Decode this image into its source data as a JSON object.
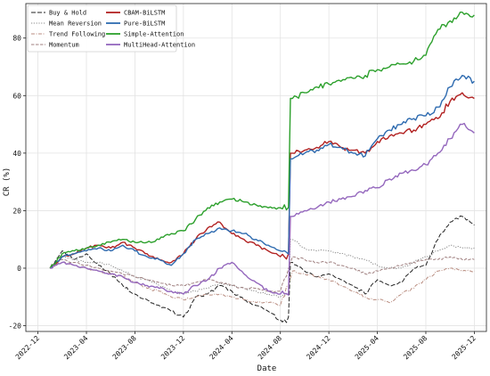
{
  "chart_data": {
    "type": "line",
    "xlabel": "Date",
    "ylabel": "CR (%)",
    "grid": true,
    "legend_position": "top-left",
    "x_ticks": [
      "2022-12",
      "2023-04",
      "2023-08",
      "2023-12",
      "2024-04",
      "2024-08",
      "2024-12",
      "2025-04",
      "2025-08",
      "2025-12"
    ],
    "y_ticks": [
      -20,
      0,
      20,
      40,
      60,
      80
    ],
    "x_range": [
      "2022-11",
      "2026-01"
    ],
    "ylim": [
      -22,
      92
    ],
    "x": [
      "2023-01",
      "2023-02",
      "2023-03",
      "2023-04",
      "2023-05",
      "2023-06",
      "2023-07",
      "2023-08",
      "2023-09",
      "2023-10",
      "2023-11",
      "2023-12",
      "2024-01",
      "2024-02",
      "2024-03",
      "2024-04",
      "2024-05",
      "2024-06",
      "2024-07",
      "2024-08",
      "2024-09",
      "2024-10",
      "2024-11",
      "2024-12",
      "2025-01",
      "2025-02",
      "2025-03",
      "2025-04",
      "2025-05",
      "2025-06",
      "2025-07",
      "2025-08",
      "2025-09",
      "2025-10",
      "2025-11",
      "2025-12"
    ],
    "series": [
      {
        "name": "Buy & Hold",
        "color": "#222222",
        "dash": "5,2",
        "values": [
          0,
          6,
          3,
          5,
          1,
          -2,
          -6,
          -9,
          -11,
          -13,
          -15,
          -17,
          -10,
          -9,
          -6,
          -8,
          -11,
          -13,
          -15,
          -18,
          2,
          -1,
          -3,
          -2,
          -4,
          -6,
          -9,
          -4,
          -6,
          -5,
          0,
          1,
          10,
          16,
          18,
          15
        ]
      },
      {
        "name": "Mean Reversion",
        "color": "#888888",
        "dash": "1.2,1.6",
        "values": [
          0,
          4,
          3,
          2,
          2,
          1,
          -1,
          -3,
          -4,
          -6,
          -8,
          -9,
          -8,
          -7,
          -5,
          -6,
          -7,
          -8,
          -9,
          -10,
          10,
          7,
          6,
          6,
          5,
          4,
          3,
          1,
          0,
          0,
          2,
          4,
          6,
          8,
          7,
          7
        ]
      },
      {
        "name": "Trend Following",
        "color": "#b98d80",
        "dash": "4,1.5,1,1.5",
        "values": [
          0,
          2,
          1,
          0,
          -1,
          -2,
          -3,
          -5,
          -7,
          -8,
          -10,
          -11,
          -10,
          -9,
          -9,
          -10,
          -11,
          -12,
          -12,
          -13,
          -1,
          -2,
          -3,
          -4,
          -6,
          -8,
          -10,
          -11,
          -12,
          -9,
          -7,
          -4,
          -1,
          0,
          -1,
          -1
        ]
      },
      {
        "name": "Momentum",
        "color": "#a08080",
        "dash": "3.5,1.5",
        "values": [
          0,
          3,
          2,
          1,
          0,
          -1,
          -2,
          -3,
          -4,
          -5,
          -6,
          -6,
          -5,
          -4,
          -5,
          -6,
          -7,
          -7,
          -8,
          -8,
          4,
          3,
          2,
          2,
          1,
          0,
          -2,
          -1,
          0,
          1,
          2,
          3,
          3,
          4,
          3,
          3
        ]
      },
      {
        "name": "CBAM-BiLSTM",
        "color": "#b22222",
        "dash": "",
        "values": [
          0,
          4,
          5,
          7,
          8,
          7,
          9,
          7,
          5,
          3,
          2,
          5,
          10,
          14,
          16,
          12,
          10,
          8,
          6,
          4,
          40,
          41,
          42,
          44,
          42,
          41,
          40,
          44,
          46,
          47,
          48,
          50,
          52,
          58,
          61,
          59
        ]
      },
      {
        "name": "Pure-BiLSTM",
        "color": "#2e6bb0",
        "dash": "",
        "values": [
          0,
          4,
          5,
          6,
          7,
          6,
          8,
          6,
          4,
          3,
          1,
          5,
          10,
          12,
          14,
          13,
          12,
          10,
          8,
          6,
          38,
          40,
          41,
          43,
          42,
          40,
          39,
          45,
          48,
          50,
          52,
          53,
          56,
          63,
          67,
          65
        ]
      },
      {
        "name": "Simple-Attention",
        "color": "#2ca02c",
        "dash": "",
        "values": [
          0,
          5,
          6,
          7,
          8,
          9,
          10,
          9,
          9,
          10,
          12,
          13,
          17,
          21,
          23,
          24,
          23,
          22,
          21,
          21,
          59,
          61,
          63,
          64,
          65,
          66,
          67,
          69,
          70,
          71,
          72,
          74,
          83,
          86,
          89,
          88
        ]
      },
      {
        "name": "MultiHead-Attention",
        "color": "#9467bd",
        "dash": "",
        "values": [
          0,
          2,
          1,
          0,
          -1,
          -2,
          -3,
          -5,
          -6,
          -7,
          -8,
          -9,
          -6,
          -4,
          0,
          2,
          -2,
          -5,
          -8,
          -9,
          18,
          20,
          21,
          23,
          24,
          25,
          27,
          28,
          31,
          33,
          34,
          36,
          40,
          45,
          50,
          47
        ]
      }
    ],
    "legend_layout": [
      [
        "Buy & Hold",
        "CBAM-BiLSTM"
      ],
      [
        "Mean Reversion",
        "Pure-BiLSTM"
      ],
      [
        "Trend Following",
        "Simple-Attention"
      ],
      [
        "Momentum",
        "MultiHead-Attention"
      ]
    ]
  }
}
